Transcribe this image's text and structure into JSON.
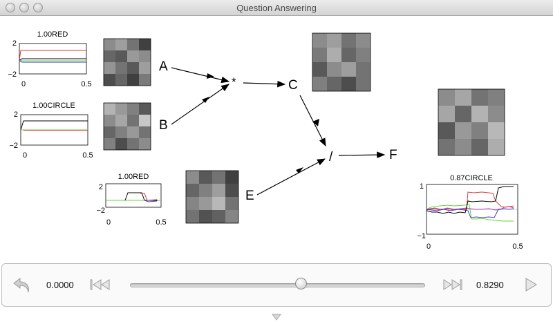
{
  "window": {
    "title": "Question Answering"
  },
  "colors": {
    "red": "#d63a3a",
    "green": "#6ad43a",
    "blue": "#3a3ad0",
    "black": "#000000",
    "purple": "#b03ab0"
  },
  "nodes": {
    "A": "A",
    "B": "B",
    "C": "C",
    "E": "E",
    "F": "F",
    "multiply": "*",
    "divide": "/"
  },
  "plots": [
    {
      "id": "plot-a",
      "title": "1.00RED",
      "ymax_label": "2",
      "ymin_label": "−2",
      "x0_label": "0",
      "x1_label": "0.5"
    },
    {
      "id": "plot-b",
      "title": "1.00CIRCLE",
      "ymax_label": "2",
      "ymin_label": "−2",
      "x0_label": "0",
      "x1_label": "0.5"
    },
    {
      "id": "plot-e",
      "title": "1.00RED",
      "ymax_label": "2",
      "ymin_label": "−2",
      "x0_label": "0",
      "x1_label": "0.5"
    },
    {
      "id": "plot-f",
      "title": "0.87CIRCLE",
      "ymax_label": "1",
      "ymin_label": "−1",
      "x0_label": "0",
      "x1_label": "0.5"
    }
  ],
  "grids": {
    "A": [
      [
        0.55,
        0.62,
        0.45,
        0.25
      ],
      [
        0.4,
        0.35,
        0.6,
        0.55
      ],
      [
        0.58,
        0.45,
        0.35,
        0.62
      ],
      [
        0.3,
        0.4,
        0.25,
        0.48
      ]
    ],
    "B": [
      [
        0.7,
        0.6,
        0.5,
        0.35
      ],
      [
        0.55,
        0.65,
        0.45,
        0.78
      ],
      [
        0.4,
        0.5,
        0.6,
        0.45
      ],
      [
        0.5,
        0.3,
        0.45,
        0.55
      ]
    ],
    "E": [
      [
        0.55,
        0.35,
        0.45,
        0.25
      ],
      [
        0.4,
        0.5,
        0.62,
        0.3
      ],
      [
        0.52,
        0.6,
        0.72,
        0.45
      ],
      [
        0.45,
        0.32,
        0.38,
        0.52
      ]
    ],
    "C": [
      [
        0.55,
        0.62,
        0.45,
        0.55
      ],
      [
        0.48,
        0.68,
        0.4,
        0.5
      ],
      [
        0.35,
        0.55,
        0.62,
        0.45
      ],
      [
        0.5,
        0.4,
        0.3,
        0.45
      ]
    ],
    "F": [
      [
        0.55,
        0.65,
        0.45,
        0.5
      ],
      [
        0.65,
        0.4,
        0.7,
        0.55
      ],
      [
        0.35,
        0.6,
        0.5,
        0.72
      ],
      [
        0.45,
        0.55,
        0.4,
        0.68
      ]
    ]
  },
  "controls": {
    "time_current": "0.0000",
    "time_end": "0.8290",
    "slider_fraction": 0.58
  }
}
